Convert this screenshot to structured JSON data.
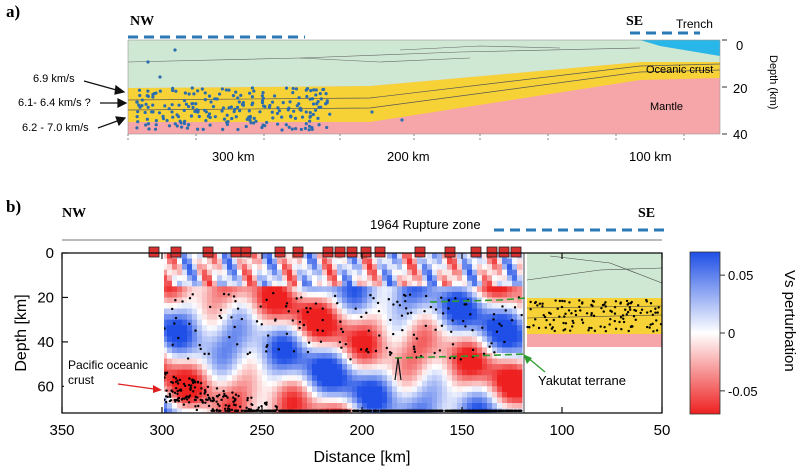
{
  "panel_a": {
    "label": "a)",
    "nw": "NW",
    "se": "SE",
    "trench": "Trench",
    "oceanic_crust": "Oceanic crust",
    "mantle": "Mantle",
    "depth_label": "Depth (km)",
    "depth_ticks": [
      "0",
      "20",
      "40"
    ],
    "dist_ticks": [
      "300 km",
      "200 km",
      "100 km"
    ],
    "velocity_labels": [
      "6.9 km/s",
      "6.1- 6.4 km/s ?",
      "6.2 - 7.0 km/s"
    ],
    "colors": {
      "green": "#cfe8d3",
      "yellow": "#f7d237",
      "pink": "#f6a6a8",
      "water": "#29b6e8",
      "dots": "#2a6db0"
    }
  },
  "panel_b": {
    "label": "b)",
    "nw": "NW",
    "se": "SE",
    "rupture_label": "1964 Rupture zone",
    "pacific_label_1": "Pacific oceanic",
    "pacific_label_2": "crust",
    "yakutat_label": "Yakutat terrane",
    "colorbar_title": "Vs perturbation",
    "colors": {
      "blue": "#1f4fe6",
      "red": "#ee2020",
      "station": "#d93030",
      "green_dash": "#2e9e2e"
    }
  },
  "chart_data": {
    "type": "heatmap",
    "xlabel": "Distance [km]",
    "ylabel": "Depth [km]",
    "x_ticks": [
      350,
      300,
      250,
      200,
      150,
      100,
      50
    ],
    "y_ticks": [
      0,
      20,
      40,
      60
    ],
    "xlim": [
      350,
      50
    ],
    "ylim": [
      0,
      72
    ],
    "colorbar": {
      "title": "Vs perturbation",
      "ticks": [
        "0.05",
        "0",
        "-0.05"
      ],
      "range": [
        -0.07,
        0.07
      ]
    },
    "stations_km": [
      304,
      293,
      277,
      263,
      258,
      241,
      232,
      217,
      211,
      205,
      198,
      191,
      171,
      156,
      143,
      135,
      129,
      123
    ]
  }
}
